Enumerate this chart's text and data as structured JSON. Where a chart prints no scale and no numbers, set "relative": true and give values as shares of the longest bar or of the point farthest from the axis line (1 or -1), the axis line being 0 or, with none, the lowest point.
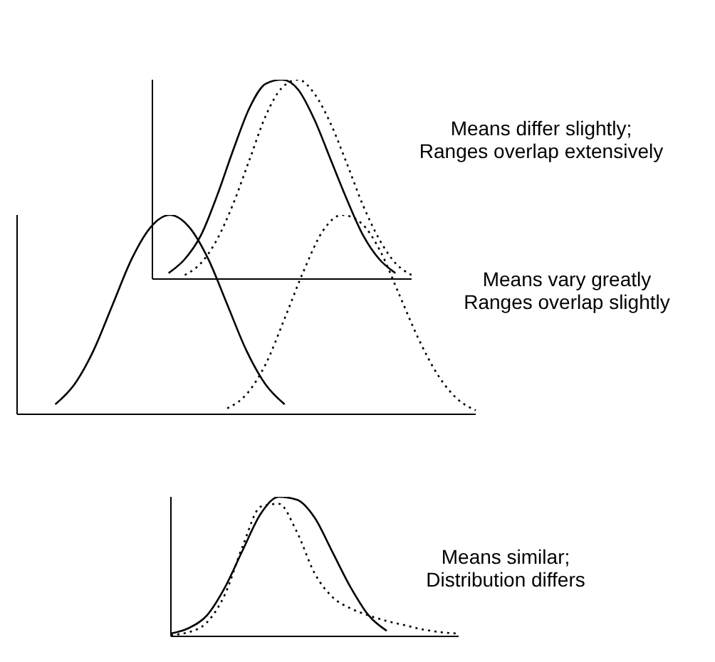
{
  "chart_data": [
    {
      "type": "line",
      "relative": true,
      "marker": "none",
      "categories": [
        null,
        null,
        null,
        null,
        null,
        null,
        null,
        null,
        null,
        null,
        null,
        null,
        null,
        null,
        null,
        null,
        null
      ],
      "series": [
        {
          "color": "#000000",
          "line_style": "solid",
          "values": [
            null,
            0.03,
            0.1,
            0.22,
            0.42,
            0.65,
            0.86,
            0.98,
            1,
            0.95,
            0.8,
            0.6,
            0.4,
            0.22,
            0.1,
            0.03,
            null
          ]
        },
        {
          "color": "#000000",
          "line_style": "dotted",
          "values": [
            null,
            null,
            0.02,
            0.08,
            0.2,
            0.38,
            0.6,
            0.82,
            0.96,
            1,
            0.93,
            0.78,
            0.58,
            0.37,
            0.2,
            0.08,
            0.02
          ]
        }
      ],
      "annotations": [
        "Means differ slightly;",
        "Ranges overlap extensively"
      ]
    },
    {
      "type": "line",
      "relative": true,
      "marker": "none",
      "categories": [
        null,
        null,
        null,
        null,
        null,
        null,
        null,
        null,
        null,
        null,
        null,
        null,
        null,
        null,
        null,
        null,
        null,
        null,
        null,
        null,
        null,
        null,
        null,
        null,
        null
      ],
      "series": [
        {
          "color": "#000000",
          "line_style": "solid",
          "values": [
            null,
            null,
            0.05,
            0.15,
            0.32,
            0.55,
            0.78,
            0.94,
            1,
            0.94,
            0.78,
            0.55,
            0.32,
            0.15,
            0.05,
            null,
            null,
            null,
            null,
            null,
            null,
            null,
            null,
            null,
            null
          ]
        },
        {
          "color": "#000000",
          "line_style": "dotted",
          "values": [
            null,
            null,
            null,
            null,
            null,
            null,
            null,
            null,
            null,
            null,
            null,
            0.03,
            0.1,
            0.25,
            0.48,
            0.72,
            0.92,
            1,
            0.96,
            0.82,
            0.6,
            0.38,
            0.2,
            0.08,
            0.02
          ]
        }
      ],
      "annotations": [
        "Means vary greatly",
        "Ranges overlap slightly"
      ]
    },
    {
      "type": "line",
      "relative": true,
      "marker": "none",
      "categories": [
        null,
        null,
        null,
        null,
        null,
        null,
        null,
        null,
        null,
        null,
        null,
        null,
        null,
        null,
        null,
        null,
        null
      ],
      "series": [
        {
          "color": "#000000",
          "line_style": "solid",
          "values": [
            0.02,
            0.06,
            0.15,
            0.35,
            0.62,
            0.88,
            1,
            0.98,
            0.85,
            0.6,
            0.35,
            0.15,
            0.04,
            null,
            null,
            null,
            null
          ]
        },
        {
          "color": "#000000",
          "line_style": "dotted",
          "values": [
            0.01,
            0.03,
            0.1,
            0.3,
            0.65,
            0.93,
            0.95,
            0.75,
            0.45,
            0.28,
            0.2,
            0.15,
            0.11,
            0.08,
            0.05,
            0.03,
            0.02
          ]
        }
      ],
      "annotations": [
        "Means similar;",
        "Distribution differs"
      ]
    }
  ]
}
